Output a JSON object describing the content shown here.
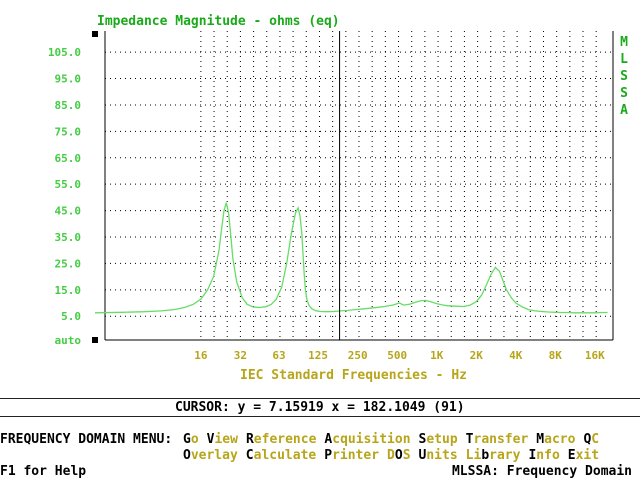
{
  "header": {
    "title": "Impedance Magnitude - ohms (eq)",
    "vertical_label": [
      "M",
      "L",
      "S",
      "S",
      "A"
    ]
  },
  "colors": {
    "curve": "#66dd66",
    "grid": "#000000",
    "y_labels": "#44cc44",
    "x_labels": "#b7a51a",
    "title": "#1aaa1a"
  },
  "chart_data": {
    "type": "line",
    "title": "Impedance Magnitude - ohms (eq)",
    "xlabel": "IEC Standard Frequencies - Hz",
    "ylabel": "",
    "x_scale": "log",
    "y_tick_labels": [
      "105.0",
      "95.0",
      "85.0",
      "75.0",
      "65.0",
      "55.0",
      "45.0",
      "35.0",
      "25.0",
      "15.0",
      "5.0",
      "auto"
    ],
    "y_tick_values": [
      105,
      95,
      85,
      75,
      65,
      55,
      45,
      35,
      25,
      15,
      5
    ],
    "x_tick_labels": [
      "16",
      "32",
      "63",
      "125",
      "250",
      "500",
      "1K",
      "2K",
      "4K",
      "8K",
      "16K"
    ],
    "x_tick_values": [
      16,
      32,
      63,
      125,
      250,
      500,
      1000,
      2000,
      4000,
      8000,
      16000
    ],
    "xlim": [
      2.5,
      22000
    ],
    "ylim": [
      -4,
      113
    ],
    "cursor_x": 182.1049,
    "series": [
      {
        "x": [
          2.5,
          4,
          6,
          8,
          10,
          12,
          14,
          16,
          18,
          20,
          22,
          23,
          24,
          25,
          26,
          27,
          28,
          30,
          33,
          36,
          40,
          45,
          50,
          55,
          60,
          66,
          72,
          78,
          84,
          88,
          91,
          94,
          96,
          98,
          100,
          103,
          107,
          112,
          120,
          130,
          145,
          165,
          185,
          210,
          240,
          280,
          330,
          400,
          470,
          520,
          560,
          620,
          680,
          750,
          820,
          900,
          1000,
          1100,
          1200,
          1400,
          1600,
          1800,
          2000,
          2200,
          2400,
          2600,
          2800,
          3000,
          3200,
          3400,
          3700,
          4000,
          4500,
          5000,
          5600,
          6300,
          7100,
          8000,
          9000,
          10000,
          11000,
          12000,
          14000,
          16000,
          18000,
          20000
        ],
        "y": [
          6.3,
          6.5,
          6.7,
          7.0,
          7.5,
          8.3,
          9.5,
          11.5,
          15,
          20,
          30,
          38,
          45,
          48,
          44,
          36,
          27,
          18,
          12,
          9.5,
          8.5,
          8.3,
          8.6,
          9.5,
          11.5,
          16,
          25,
          36,
          44,
          46,
          43,
          36,
          28,
          21,
          15,
          11,
          9,
          7.8,
          7.1,
          6.8,
          6.7,
          6.8,
          7.0,
          7.2,
          7.5,
          7.8,
          8.2,
          8.7,
          9.3,
          10,
          9.2,
          9.5,
          10.2,
          10.8,
          11,
          10.5,
          9.8,
          9.3,
          9.0,
          8.8,
          8.7,
          9.2,
          10.5,
          13,
          17,
          21,
          23.5,
          22,
          18.5,
          15,
          12,
          10,
          8.5,
          7.5,
          7.0,
          6.8,
          6.6,
          6.5,
          6.4,
          6.4,
          6.3,
          6.3,
          6.3,
          6.3,
          6.4,
          6.4
        ]
      }
    ]
  },
  "cursor_readout": "CURSOR: y = 7.15919 x = 182.1049 (91)",
  "menu": {
    "title": "FREQUENCY DOMAIN MENU:",
    "row1": [
      {
        "hotkey": "G",
        "rest": "o"
      },
      {
        "hotkey": "V",
        "rest": "iew"
      },
      {
        "hotkey": "R",
        "rest": "eference"
      },
      {
        "hotkey": "A",
        "rest": "cquisition"
      },
      {
        "hotkey": "S",
        "rest": "etup"
      },
      {
        "hotkey": "T",
        "rest": "ransfer"
      },
      {
        "hotkey": "M",
        "rest": "acro"
      },
      {
        "hotkey": "Q",
        "rest": "C"
      }
    ],
    "row2": [
      {
        "hotkey": "O",
        "rest": "verlay"
      },
      {
        "hotkey": "C",
        "rest": "alculate"
      },
      {
        "hotkey": "P",
        "rest": "rinter"
      },
      {
        "pre": "D",
        "hotkey": "O",
        "rest": "S"
      },
      {
        "hotkey": "U",
        "rest": "nits"
      },
      {
        "pre": "Li",
        "hotkey": "b",
        "rest": "rary"
      },
      {
        "hotkey": "I",
        "rest": "nfo"
      },
      {
        "hotkey": "E",
        "rest": "xit"
      }
    ]
  },
  "footer": {
    "help": "F1 for Help",
    "status": "MLSSA: Frequency Domain"
  }
}
